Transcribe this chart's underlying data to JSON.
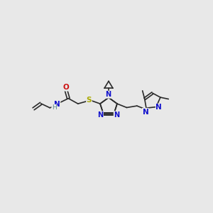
{
  "bg_color": "#e8e8e8",
  "bond_color": "#2a2a2a",
  "N_color": "#1010cc",
  "O_color": "#cc1010",
  "S_color": "#aaaa00",
  "H_color": "#5c8a8a",
  "font_size": 7.0,
  "bond_lw": 1.2,
  "xlim": [
    0,
    10
  ],
  "ylim": [
    0,
    10
  ]
}
